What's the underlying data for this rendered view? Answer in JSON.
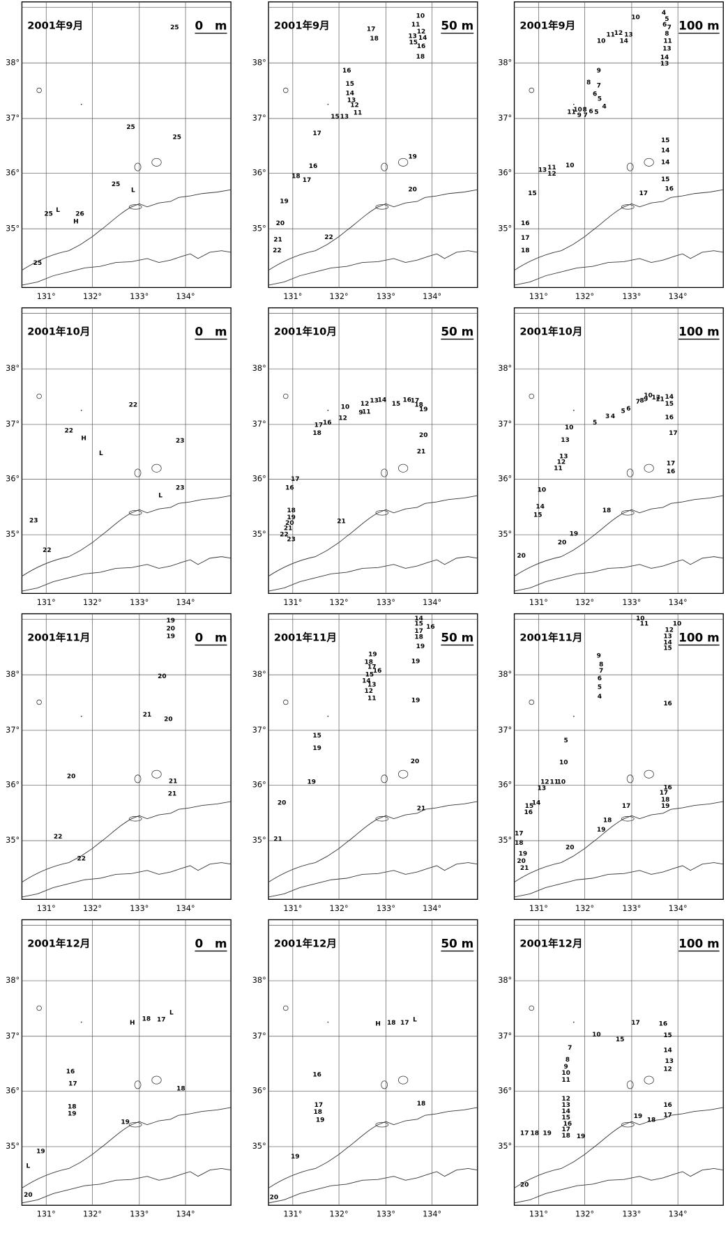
{
  "axes": {
    "x_ticks": [
      "131°",
      "132°",
      "133°",
      "134°"
    ],
    "y_ticks": [
      "38°",
      "37°",
      "36°",
      "35°"
    ]
  },
  "panels": [
    {
      "title": "2001年9月",
      "depth": "0　m",
      "contour_labels": [
        "25",
        "25",
        "25",
        "25",
        "L",
        "L",
        "25",
        "26",
        "H",
        "25"
      ]
    },
    {
      "title": "2001年9月",
      "depth": "50 m",
      "contour_labels": [
        "10",
        "11",
        "12",
        "13",
        "14",
        "15",
        "16",
        "17",
        "18",
        "18",
        "16",
        "15",
        "14",
        "13",
        "12",
        "11",
        "15",
        "13",
        "17",
        "16",
        "19",
        "18",
        "17",
        "20",
        "19",
        "20",
        "22",
        "21",
        "22"
      ]
    },
    {
      "title": "2001年9月",
      "depth": "100 m",
      "contour_labels": [
        "10",
        "4",
        "5",
        "6",
        "7",
        "8",
        "11",
        "13",
        "14",
        "13",
        "11",
        "12",
        "13",
        "14",
        "10",
        "9",
        "8",
        "7",
        "6",
        "5",
        "4",
        "10",
        "11",
        "8",
        "9",
        "7",
        "6",
        "5",
        "15",
        "14",
        "10",
        "11",
        "13",
        "12",
        "14",
        "15",
        "16",
        "17",
        "15",
        "16",
        "17",
        "18"
      ]
    },
    {
      "title": "2001年10月",
      "depth": "0　m",
      "contour_labels": [
        "22",
        "22",
        "H",
        "L",
        "23",
        "23",
        "L",
        "23",
        "22"
      ]
    },
    {
      "title": "2001年10月",
      "depth": "50 m",
      "contour_labels": [
        "17",
        "16",
        "18",
        "12",
        "10",
        "9",
        "11",
        "12",
        "13",
        "14",
        "15",
        "16",
        "17",
        "18",
        "19",
        "20",
        "21",
        "17",
        "16",
        "18",
        "19",
        "20",
        "21",
        "22",
        "23",
        "21"
      ]
    },
    {
      "title": "2001年10月",
      "depth": "100 m",
      "contour_labels": [
        "10",
        "13",
        "14",
        "15",
        "7",
        "8",
        "9",
        "11",
        "5",
        "3",
        "4",
        "5",
        "6",
        "10",
        "13",
        "16",
        "17",
        "13",
        "12",
        "11",
        "17",
        "16",
        "10",
        "15",
        "14",
        "18",
        "19",
        "20",
        "20"
      ]
    },
    {
      "title": "2001年11月",
      "depth": "0　m",
      "contour_labels": [
        "19",
        "20",
        "19",
        "20",
        "21",
        "20",
        "20",
        "21",
        "21",
        "22",
        "22"
      ]
    },
    {
      "title": "2001年11月",
      "depth": "50 m",
      "contour_labels": [
        "19",
        "18",
        "17",
        "16",
        "15",
        "14",
        "13",
        "12",
        "11",
        "19",
        "19",
        "14",
        "15",
        "16",
        "17",
        "18",
        "19",
        "15",
        "19",
        "20",
        "19",
        "20",
        "21",
        "21"
      ]
    },
    {
      "title": "2001年11月",
      "depth": "100 m",
      "contour_labels": [
        "10",
        "11",
        "12",
        "10",
        "13",
        "14",
        "15",
        "9",
        "8",
        "7",
        "6",
        "5",
        "4",
        "16",
        "5",
        "10",
        "12",
        "11",
        "10",
        "13",
        "14",
        "15",
        "16",
        "16",
        "17",
        "18",
        "19",
        "17",
        "18",
        "19",
        "17",
        "18",
        "19",
        "20",
        "21",
        "20"
      ]
    },
    {
      "title": "2001年12月",
      "depth": "0　m",
      "contour_labels": [
        "H",
        "18",
        "17",
        "L",
        "16",
        "17",
        "18",
        "19",
        "18",
        "19",
        "19",
        "L",
        "20"
      ]
    },
    {
      "title": "2001年12月",
      "depth": "50 m",
      "contour_labels": [
        "H",
        "18",
        "17",
        "L",
        "16",
        "17",
        "18",
        "19",
        "18",
        "19",
        "20"
      ]
    },
    {
      "title": "2001年12月",
      "depth": "100 m",
      "contour_labels": [
        "17",
        "16",
        "15",
        "14",
        "13",
        "12",
        "10",
        "15",
        "7",
        "8",
        "9",
        "10",
        "11",
        "12",
        "13",
        "14",
        "15",
        "16",
        "17",
        "18",
        "19",
        "16",
        "17",
        "19",
        "18",
        "17",
        "18",
        "19",
        "20"
      ]
    }
  ]
}
